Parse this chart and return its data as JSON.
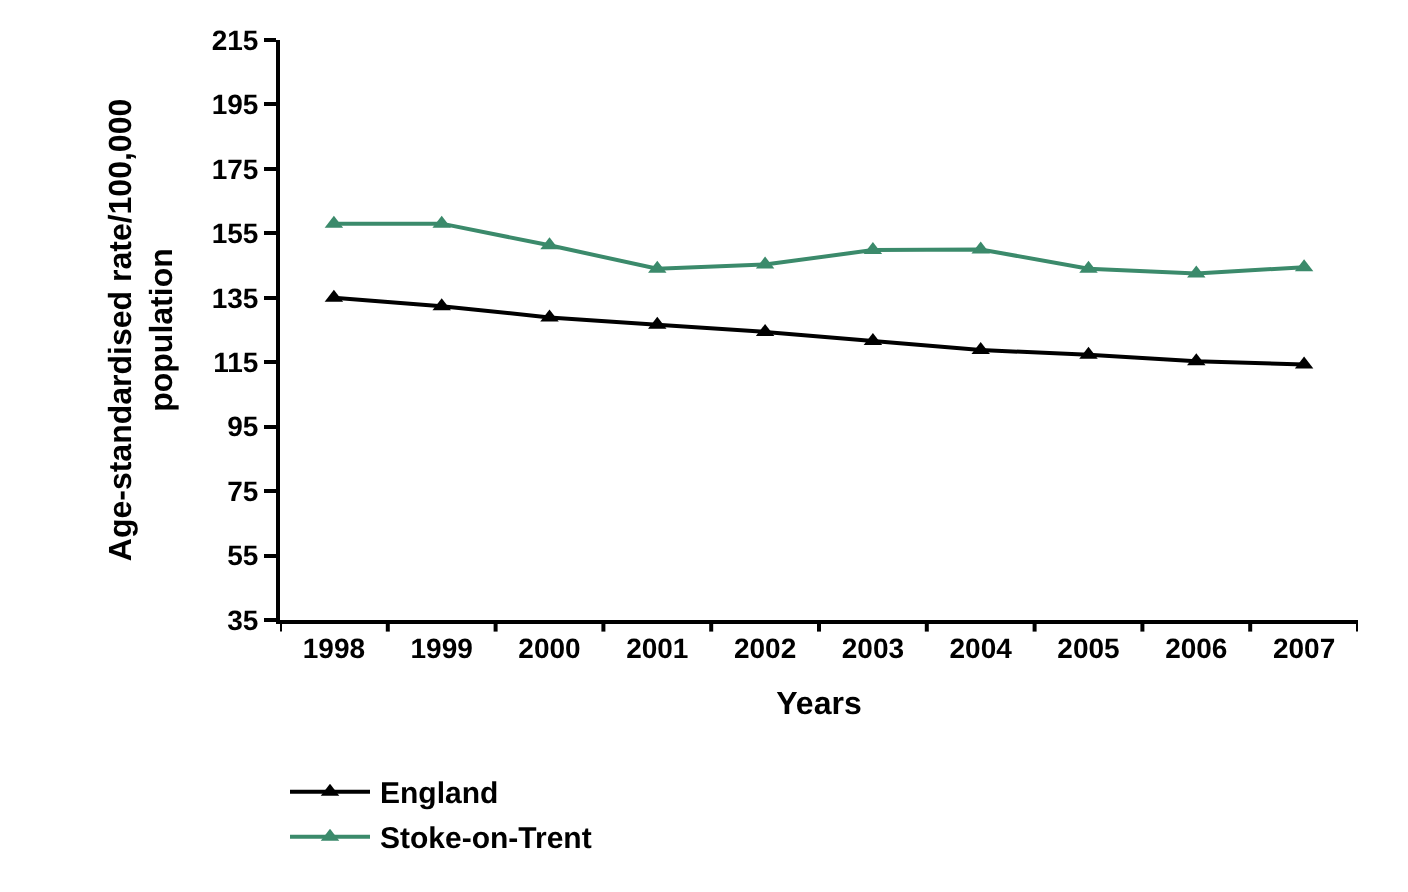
{
  "chart_data": {
    "type": "line",
    "xlabel": "Years",
    "ylabel": "Age-standardised rate/100,000\npopulation",
    "categories": [
      "1998",
      "1999",
      "2000",
      "2001",
      "2002",
      "2003",
      "2004",
      "2005",
      "2006",
      "2007"
    ],
    "series": [
      {
        "name": "England",
        "color": "#000000",
        "values": [
          135,
          132.4,
          128.9,
          126.6,
          124.4,
          121.6,
          118.8,
          117.3,
          115.3,
          114.3
        ]
      },
      {
        "name": "Stoke-on-Trent",
        "color": "#3b8a6b",
        "values": [
          158,
          158,
          151.3,
          144,
          145.3,
          149.8,
          150,
          144,
          142.5,
          144.5
        ]
      }
    ],
    "ylim": [
      35,
      215
    ],
    "yticks": [
      35,
      55,
      75,
      95,
      115,
      135,
      155,
      175,
      195,
      215
    ],
    "legend": "bottom",
    "marker": "triangle",
    "line_style": "solid"
  }
}
